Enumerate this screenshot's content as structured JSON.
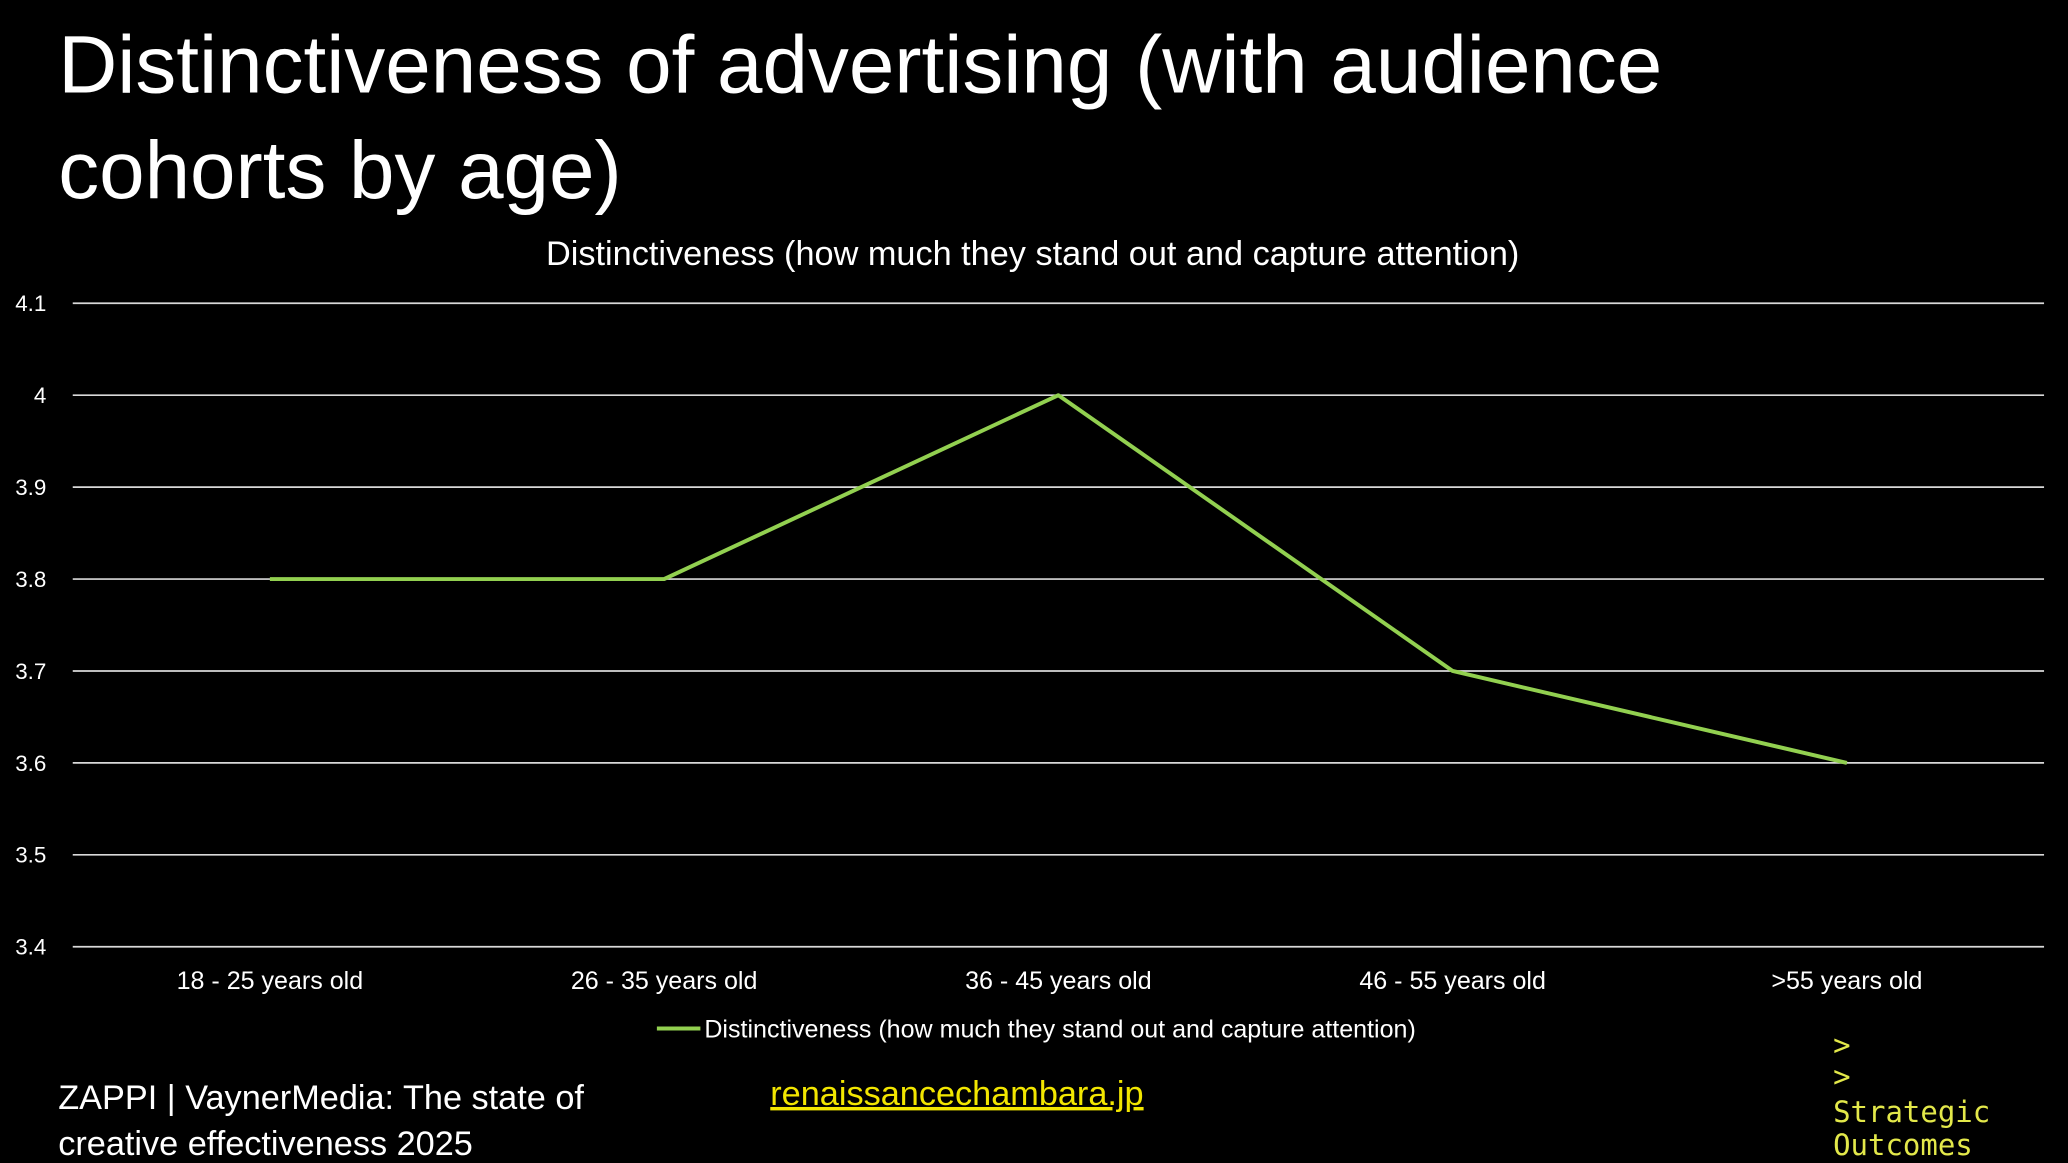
{
  "title": [
    "Distinctiveness of advertising (with audience",
    "cohorts by age)"
  ],
  "chart_data": {
    "type": "line",
    "title": "Distinctiveness (how much they stand out and capture attention)",
    "categories": [
      "18 - 25 years old",
      "26 - 35 years old",
      "36 - 45 years old",
      "46 - 55 years old",
      ">55 years old"
    ],
    "series": [
      {
        "name": "Distinctiveness (how much they stand out and capture attention)",
        "color": "#92d050",
        "values": [
          3.8,
          3.8,
          4.0,
          3.7,
          3.6
        ]
      }
    ],
    "ylim": [
      3.4,
      4.1
    ],
    "yticks": [
      3.4,
      3.5,
      3.6,
      3.7,
      3.8,
      3.9,
      4,
      4.1
    ],
    "grid": true,
    "legend": "bottom"
  },
  "footer": {
    "source": [
      "ZAPPI | VaynerMedia: The state of",
      "creative effectiveness 2025"
    ],
    "link": "renaissancechambara.jp",
    "logo": [
      ">",
      ">",
      "Strategic",
      "Outcomes"
    ]
  }
}
